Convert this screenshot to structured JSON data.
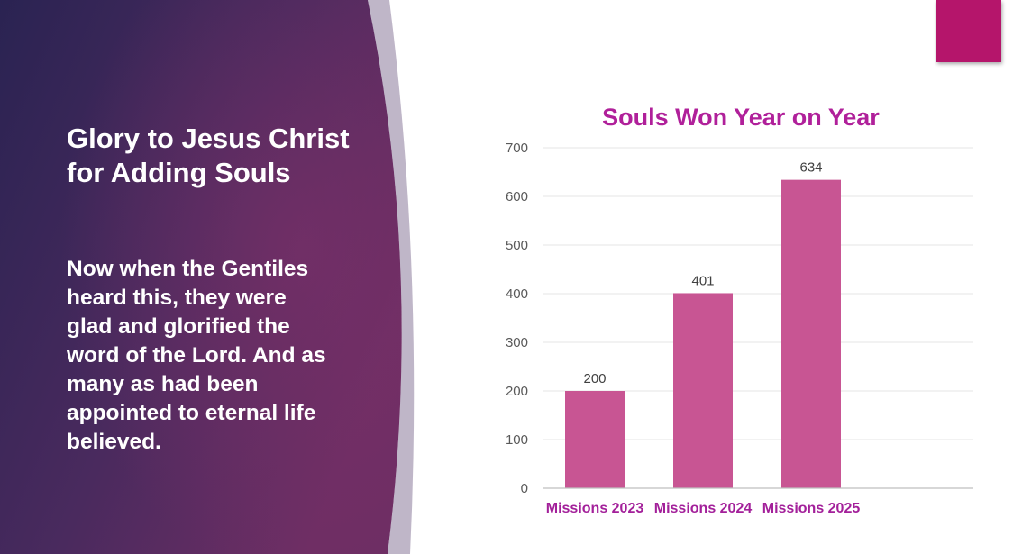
{
  "slide": {
    "title": "Glory to Jesus Christ for Adding Souls",
    "body": "Now when the Gentiles heard this, they were glad and glorified the word of the Lord. And as many as had been appointed to eternal life believed.",
    "accent_color": "#b5156b",
    "panel_colors": [
      "#2a2352",
      "#5a2a5c",
      "#6b2d63"
    ]
  },
  "chart_data": {
    "type": "bar",
    "title": "Souls Won Year on Year",
    "categories": [
      "Missions 2023",
      "Missions 2024",
      "Missions 2025"
    ],
    "values": [
      200,
      401,
      634
    ],
    "data_labels": [
      "200",
      "401",
      "634"
    ],
    "xlabel": "",
    "ylabel": "",
    "ylim": [
      0,
      700
    ],
    "y_ticks": [
      0,
      100,
      200,
      300,
      400,
      500,
      600,
      700
    ],
    "grid": true,
    "legend": "none",
    "bar_color": "#c85593",
    "title_color": "#b0209a",
    "category_label_color": "#a3209a"
  }
}
